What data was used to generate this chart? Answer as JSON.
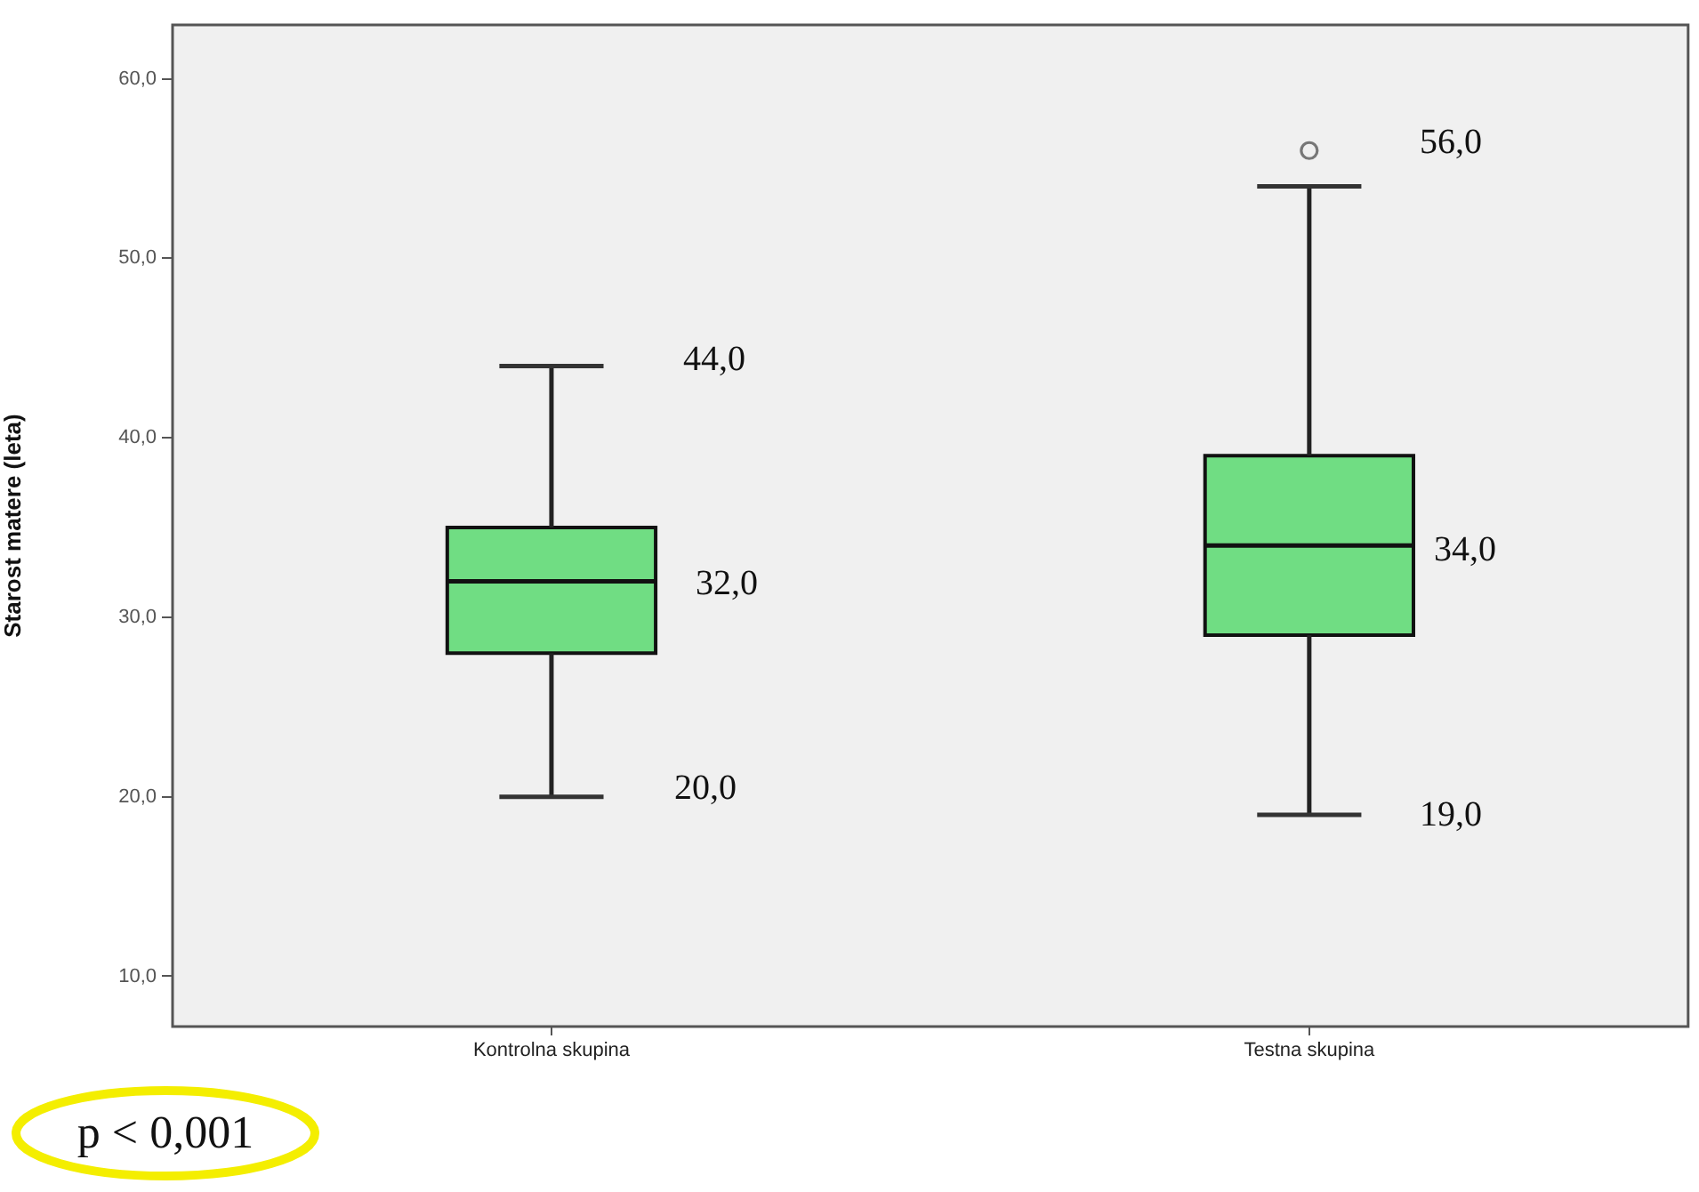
{
  "chart_data": {
    "type": "box",
    "ylabel": "Starost matere (leta)",
    "categories": [
      "Kontrolna skupina",
      "Testna skupina"
    ],
    "color": "#70dd83",
    "boxes": [
      {
        "low": 20,
        "q1": 28,
        "median": 32,
        "q3": 35,
        "high": 44
      },
      {
        "low": 19,
        "q1": 29,
        "median": 34,
        "q3": 39,
        "high": 54,
        "outliers": [
          56
        ]
      }
    ],
    "ylim": [
      7.2,
      63
    ],
    "yticks": [
      {
        "value": 10,
        "label": "10,0"
      },
      {
        "value": 20,
        "label": "20,0"
      },
      {
        "value": 30,
        "label": "30,0"
      },
      {
        "value": 40,
        "label": "40,0"
      },
      {
        "value": 50,
        "label": "50,0"
      },
      {
        "value": 60,
        "label": "60,0"
      }
    ],
    "grid": false,
    "annotations": [
      "44,0",
      "32,0",
      "20,0",
      "56,0",
      "34,0",
      "19,0",
      "p < 0,001"
    ]
  }
}
